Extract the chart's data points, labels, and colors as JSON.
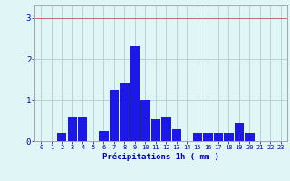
{
  "values": [
    0,
    0,
    0.2,
    0.6,
    0.6,
    0,
    0.25,
    1.25,
    1.4,
    2.3,
    1.0,
    0.55,
    0.6,
    0.3,
    0,
    0.2,
    0.2,
    0.2,
    0.2,
    0.45,
    0.2,
    0,
    0,
    0
  ],
  "categories": [
    0,
    1,
    2,
    3,
    4,
    5,
    6,
    7,
    8,
    9,
    10,
    11,
    12,
    13,
    14,
    15,
    16,
    17,
    18,
    19,
    20,
    21,
    22,
    23
  ],
  "bar_color": "#1c18e8",
  "background_color": "#e0f5f5",
  "grid_color": "#b0cece",
  "xlabel": "Précipitations 1h ( mm )",
  "ylim": [
    0,
    3.3
  ],
  "yticks": [
    0,
    1,
    2,
    3
  ],
  "xlabel_color": "#0000bb",
  "tick_color": "#0000bb",
  "figsize": [
    3.2,
    2.0
  ],
  "dpi": 100
}
